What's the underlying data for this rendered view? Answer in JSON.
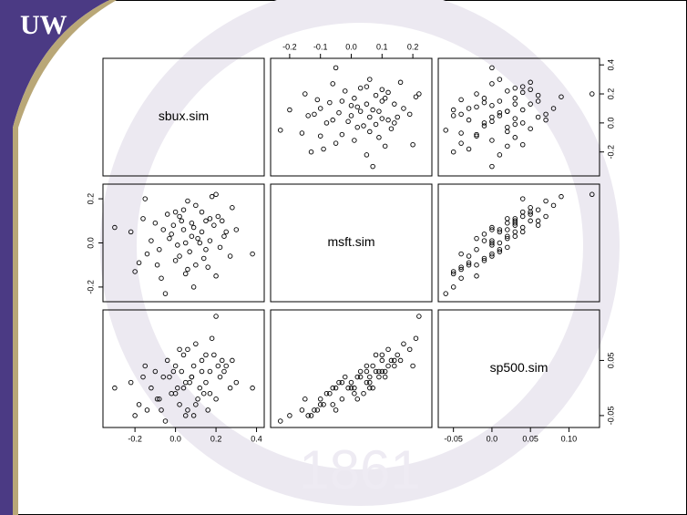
{
  "logo": "UW",
  "seal_year": "1861",
  "chart_data": {
    "type": "scatter_matrix",
    "point_color": "#000000",
    "variables": [
      {
        "name": "sbux.sim",
        "lim": [
          -0.34,
          0.42
        ],
        "xticks": [
          -0.2,
          {
            "value": 0,
            "label": "0.0"
          },
          0.2,
          0.4
        ],
        "yticks": [
          -0.2,
          {
            "value": 0,
            "label": "0.0"
          },
          0.2,
          0.4
        ],
        "values": [
          0.38,
          -0.3,
          -0.05,
          0.2,
          0.18,
          -0.15,
          0.02,
          0.1,
          0.25,
          -0.08,
          0.05,
          0.15,
          -0.2,
          0.08,
          0.3,
          -0.1,
          0.0,
          0.22,
          0.13,
          -0.02,
          0.06,
          0.17,
          -0.12,
          0.04,
          0.27,
          0.09,
          -0.18,
          0.11,
          0.2,
          -0.04,
          0.07,
          0.14,
          -0.06,
          0.03,
          0.19,
          -0.14,
          0.01,
          0.24,
          0.16,
          -0.22,
          0.1,
          0.05,
          -0.01,
          0.12,
          0.21,
          -0.09,
          0.08,
          0.15,
          0.02,
          0.28,
          -0.03,
          0.13,
          -0.16,
          0.06,
          0.09,
          0.17,
          -0.07,
          0.04,
          0.23,
          0.0
        ]
      },
      {
        "name": "msft.sim",
        "lim": [
          -0.25,
          0.25
        ],
        "xticks": [
          -0.2,
          -0.1,
          {
            "value": 0,
            "label": "0.0"
          },
          0.1,
          0.2
        ],
        "yticks": [
          -0.2,
          {
            "value": 0,
            "label": "0.0"
          },
          0.2
        ],
        "values": [
          -0.05,
          0.07,
          -0.23,
          0.22,
          0.21,
          0.2,
          0.12,
          -0.1,
          0.05,
          -0.03,
          0.0,
          0.1,
          -0.13,
          0.03,
          0.06,
          0.09,
          -0.08,
          -0.02,
          0.14,
          0.04,
          -0.12,
          0.11,
          0.01,
          0.15,
          -0.06,
          0.07,
          -0.09,
          0.02,
          -0.15,
          0.13,
          -0.04,
          -0.07,
          0.06,
          0.1,
          0.08,
          -0.05,
          -0.01,
          0.03,
          -0.11,
          0.05,
          0.17,
          -0.14,
          0.08,
          0.0,
          0.12,
          -0.1,
          0.09,
          -0.03,
          -0.06,
          0.16,
          0.02,
          0.05,
          0.11,
          0.19,
          -0.2,
          0.01,
          -0.16,
          0.06,
          0.1,
          0.14
        ]
      },
      {
        "name": "sp500.sim",
        "lim": [
          -0.065,
          0.135
        ],
        "xticks": [
          -0.05,
          {
            "value": 0,
            "label": "0.0"
          },
          0.05,
          {
            "value": 0.1,
            "label": "0.10"
          }
        ],
        "yticks": [
          -0.05,
          0.05
        ],
        "values": [
          0.0,
          0.0,
          -0.06,
          0.13,
          0.09,
          0.04,
          0.07,
          -0.03,
          0.04,
          -0.02,
          0.01,
          0.06,
          -0.05,
          0.02,
          0.01,
          0.03,
          -0.01,
          0.02,
          0.05,
          -0.01,
          -0.04,
          0.03,
          0.0,
          0.06,
          0.0,
          0.04,
          -0.03,
          -0.02,
          -0.02,
          0.05,
          0.01,
          -0.01,
          0.02,
          0.03,
          0.06,
          -0.04,
          0.0,
          0.03,
          -0.04,
          0.01,
          0.08,
          -0.05,
          0.03,
          0.0,
          0.04,
          -0.02,
          0.02,
          0.01,
          -0.03,
          0.05,
          0.02,
          0.03,
          0.02,
          0.07,
          -0.05,
          -0.01,
          -0.04,
          0.0,
          0.05,
          0.04
        ]
      }
    ]
  }
}
